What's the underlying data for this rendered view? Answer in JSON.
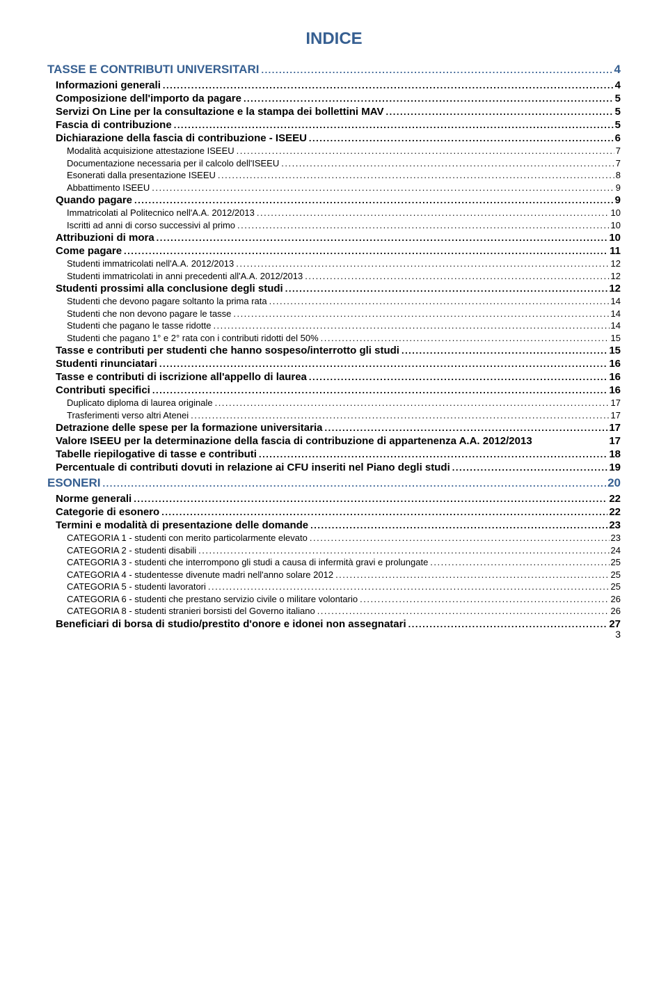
{
  "colors": {
    "heading_blue": "#365f91",
    "text_black": "#000000",
    "background": "#ffffff"
  },
  "typography": {
    "title_fontsize": 24,
    "h1_fontsize": 17,
    "h2_fontsize": 15,
    "h3_fontsize": 13,
    "font_family": "Arial"
  },
  "page": {
    "title": "INDICE",
    "footer_page_number": "3"
  },
  "toc": [
    {
      "level": 0,
      "bold": true,
      "color": "blue",
      "text": "TASSE E CONTRIBUTI UNIVERSITARI",
      "page": "4"
    },
    {
      "level": 1,
      "bold": true,
      "color": "black",
      "text": "Informazioni generali",
      "page": "4"
    },
    {
      "level": 1,
      "bold": true,
      "color": "black",
      "text": "Composizione dell'importo da pagare",
      "page": "5"
    },
    {
      "level": 1,
      "bold": true,
      "color": "black",
      "text": "Servizi On Line per la consultazione e la stampa dei bollettini MAV",
      "page": "5"
    },
    {
      "level": 1,
      "bold": true,
      "color": "black",
      "text": "Fascia di contribuzione",
      "page": "5"
    },
    {
      "level": 1,
      "bold": true,
      "color": "black",
      "text": "Dichiarazione della fascia di contribuzione - ISEEU",
      "page": "6"
    },
    {
      "level": 2,
      "bold": false,
      "color": "black",
      "text": "Modalità acquisizione attestazione ISEEU",
      "page": "7"
    },
    {
      "level": 2,
      "bold": false,
      "color": "black",
      "text": "Documentazione necessaria per il calcolo dell'ISEEU",
      "page": "7"
    },
    {
      "level": 2,
      "bold": false,
      "color": "black",
      "text": "Esonerati dalla presentazione ISEEU",
      "page": "8"
    },
    {
      "level": 2,
      "bold": false,
      "color": "black",
      "text": "Abbattimento ISEEU",
      "page": "9"
    },
    {
      "level": 1,
      "bold": true,
      "color": "black",
      "text": "Quando pagare",
      "page": "9"
    },
    {
      "level": 2,
      "bold": false,
      "color": "black",
      "text": "Immatricolati al Politecnico nell'A.A. 2012/2013",
      "page": "10"
    },
    {
      "level": 2,
      "bold": false,
      "color": "black",
      "text": "Iscritti ad anni di corso successivi al primo",
      "page": "10"
    },
    {
      "level": 1,
      "bold": true,
      "color": "black",
      "text": "Attribuzioni di mora",
      "page": "10"
    },
    {
      "level": 1,
      "bold": true,
      "color": "black",
      "text": "Come pagare",
      "page": "11"
    },
    {
      "level": 2,
      "bold": false,
      "color": "black",
      "text": "Studenti immatricolati nell'A.A. 2012/2013",
      "page": "12"
    },
    {
      "level": 2,
      "bold": false,
      "color": "black",
      "text": "Studenti immatricolati in anni precedenti all'A.A. 2012/2013",
      "page": "12"
    },
    {
      "level": 1,
      "bold": true,
      "color": "black",
      "text": "Studenti prossimi alla conclusione degli studi",
      "page": "12"
    },
    {
      "level": 2,
      "bold": false,
      "color": "black",
      "text": "Studenti che devono pagare soltanto la prima rata",
      "page": "14"
    },
    {
      "level": 2,
      "bold": false,
      "color": "black",
      "text": "Studenti che non devono pagare le tasse",
      "page": "14"
    },
    {
      "level": 2,
      "bold": false,
      "color": "black",
      "text": "Studenti che pagano le tasse ridotte",
      "page": "14"
    },
    {
      "level": 2,
      "bold": false,
      "color": "black",
      "text": "Studenti che pagano 1° e 2° rata con i contributi ridotti del 50%",
      "page": "15"
    },
    {
      "level": 1,
      "bold": true,
      "color": "black",
      "text": "Tasse e contributi per studenti che hanno sospeso/interrotto gli studi",
      "page": "15"
    },
    {
      "level": 1,
      "bold": true,
      "color": "black",
      "text": "Studenti rinunciatari",
      "page": "16"
    },
    {
      "level": 1,
      "bold": true,
      "color": "black",
      "text": "Tasse e contributi di iscrizione all'appello di laurea",
      "page": "16"
    },
    {
      "level": 1,
      "bold": true,
      "color": "black",
      "text": "Contributi specifici",
      "page": "16"
    },
    {
      "level": 2,
      "bold": false,
      "color": "black",
      "text": "Duplicato diploma di laurea originale",
      "page": "17"
    },
    {
      "level": 2,
      "bold": false,
      "color": "black",
      "text": "Trasferimenti verso altri Atenei",
      "page": "17"
    },
    {
      "level": 1,
      "bold": true,
      "color": "black",
      "text": "Detrazione delle spese per la formazione universitaria",
      "page": "17"
    },
    {
      "level": 1,
      "bold": true,
      "color": "black",
      "text": "Valore ISEEU per la determinazione della fascia di contribuzione di appartenenza A.A. 2012/2013",
      "page": "17",
      "nodots": true
    },
    {
      "level": 1,
      "bold": true,
      "color": "black",
      "text": "Tabelle riepilogative di tasse e contributi",
      "page": "18"
    },
    {
      "level": 1,
      "bold": true,
      "color": "black",
      "text": "Percentuale di contributi dovuti in relazione ai CFU inseriti nel Piano degli studi",
      "page": "19"
    },
    {
      "level": 0,
      "bold": true,
      "color": "blue",
      "text": "ESONERI",
      "page": "20"
    },
    {
      "level": 1,
      "bold": true,
      "color": "black",
      "text": "Norme generali",
      "page": "22"
    },
    {
      "level": 1,
      "bold": true,
      "color": "black",
      "text": "Categorie di esonero",
      "page": "22"
    },
    {
      "level": 1,
      "bold": true,
      "color": "black",
      "text": "Termini e modalità di presentazione delle domande",
      "page": "23"
    },
    {
      "level": 2,
      "bold": false,
      "color": "black",
      "text": "CATEGORIA 1 - studenti con merito particolarmente elevato",
      "page": "23"
    },
    {
      "level": 2,
      "bold": false,
      "color": "black",
      "text": "CATEGORIA 2 - studenti disabili",
      "page": "24"
    },
    {
      "level": 2,
      "bold": false,
      "color": "black",
      "text": "CATEGORIA 3 - studenti che interrompono gli studi a causa di infermità gravi e prolungate",
      "page": "25"
    },
    {
      "level": 2,
      "bold": false,
      "color": "black",
      "text": "CATEGORIA 4 - studentesse divenute madri nell'anno solare 2012",
      "page": "25"
    },
    {
      "level": 2,
      "bold": false,
      "color": "black",
      "text": "CATEGORIA 5 - studenti lavoratori",
      "page": "25"
    },
    {
      "level": 2,
      "bold": false,
      "color": "black",
      "text": "CATEGORIA 6 - studenti che prestano servizio civile o militare volontario",
      "page": "26"
    },
    {
      "level": 2,
      "bold": false,
      "color": "black",
      "text": "CATEGORIA 8 - studenti stranieri borsisti del Governo italiano",
      "page": "26"
    },
    {
      "level": 1,
      "bold": true,
      "color": "black",
      "text": "Beneficiari di borsa di studio/prestito d'onore e idonei non assegnatari",
      "page": "27"
    }
  ]
}
